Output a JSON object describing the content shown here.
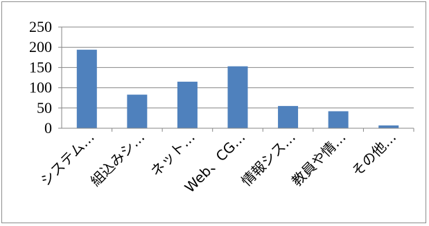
{
  "chart_data": {
    "type": "bar",
    "categories": [
      "システム…",
      "組込みシ…",
      "ネット…",
      "Web、CG…",
      "情報シス…",
      "教員や情…",
      "その他…"
    ],
    "series": [
      {
        "values": [
          194,
          83,
          115,
          153,
          55,
          42,
          7
        ],
        "color": "#4f81bd"
      }
    ],
    "ylim": [
      0,
      250
    ],
    "yticks": [
      0,
      50,
      100,
      150,
      200,
      250
    ],
    "grid": true,
    "legend": "none"
  }
}
